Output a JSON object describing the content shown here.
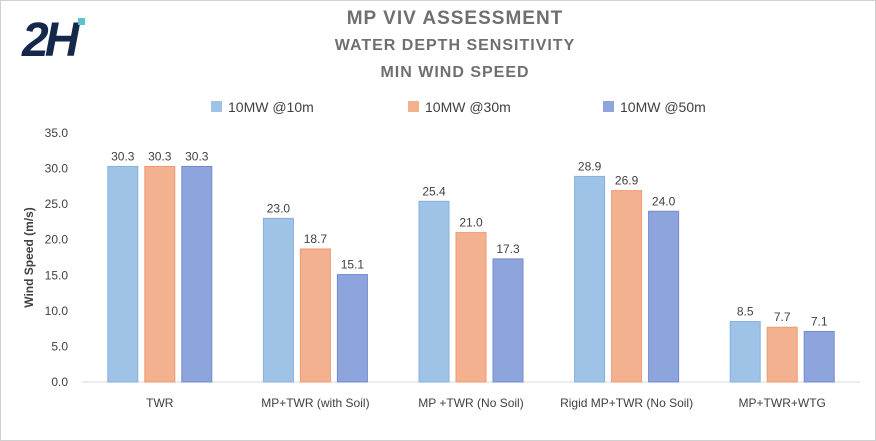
{
  "title_lines": [
    "MP VIV ASSESSMENT",
    "WATER DEPTH SENSITIVITY",
    "MIN WIND SPEED"
  ],
  "logo_text": "2H",
  "colors": {
    "series": [
      "#9fc3e6",
      "#f4b18f",
      "#8ea4dc"
    ],
    "series_stroke": [
      "#86b0db",
      "#ec9a73",
      "#7389cf"
    ],
    "logo": "#14284b",
    "logo_accent": "#5bc4d2",
    "title": "#6f6f6f"
  },
  "chart_data": {
    "type": "bar",
    "title": "MP VIV ASSESSMENT WATER DEPTH SENSITIVITY MIN WIND SPEED",
    "xlabel": "",
    "ylabel": "Wind Speed (m/s)",
    "ylim": [
      0,
      35
    ],
    "yticks": [
      "0.0",
      "5.0",
      "10.0",
      "15.0",
      "20.0",
      "25.0",
      "30.0",
      "35.0"
    ],
    "ytick_values": [
      0,
      5,
      10,
      15,
      20,
      25,
      30,
      35
    ],
    "grid": false,
    "legend_position": "top",
    "categories": [
      "TWR",
      "MP+TWR (with Soil)",
      "MP +TWR (No Soil)",
      "Rigid MP+TWR (No Soil)",
      "MP+TWR+WTG"
    ],
    "series": [
      {
        "name": "10MW @10m",
        "values": [
          30.3,
          23.0,
          25.4,
          28.9,
          8.5
        ]
      },
      {
        "name": "10MW @30m",
        "values": [
          30.3,
          18.7,
          21.0,
          26.9,
          7.7
        ]
      },
      {
        "name": "10MW @50m",
        "values": [
          30.3,
          15.1,
          17.3,
          24.0,
          7.1
        ]
      }
    ]
  }
}
